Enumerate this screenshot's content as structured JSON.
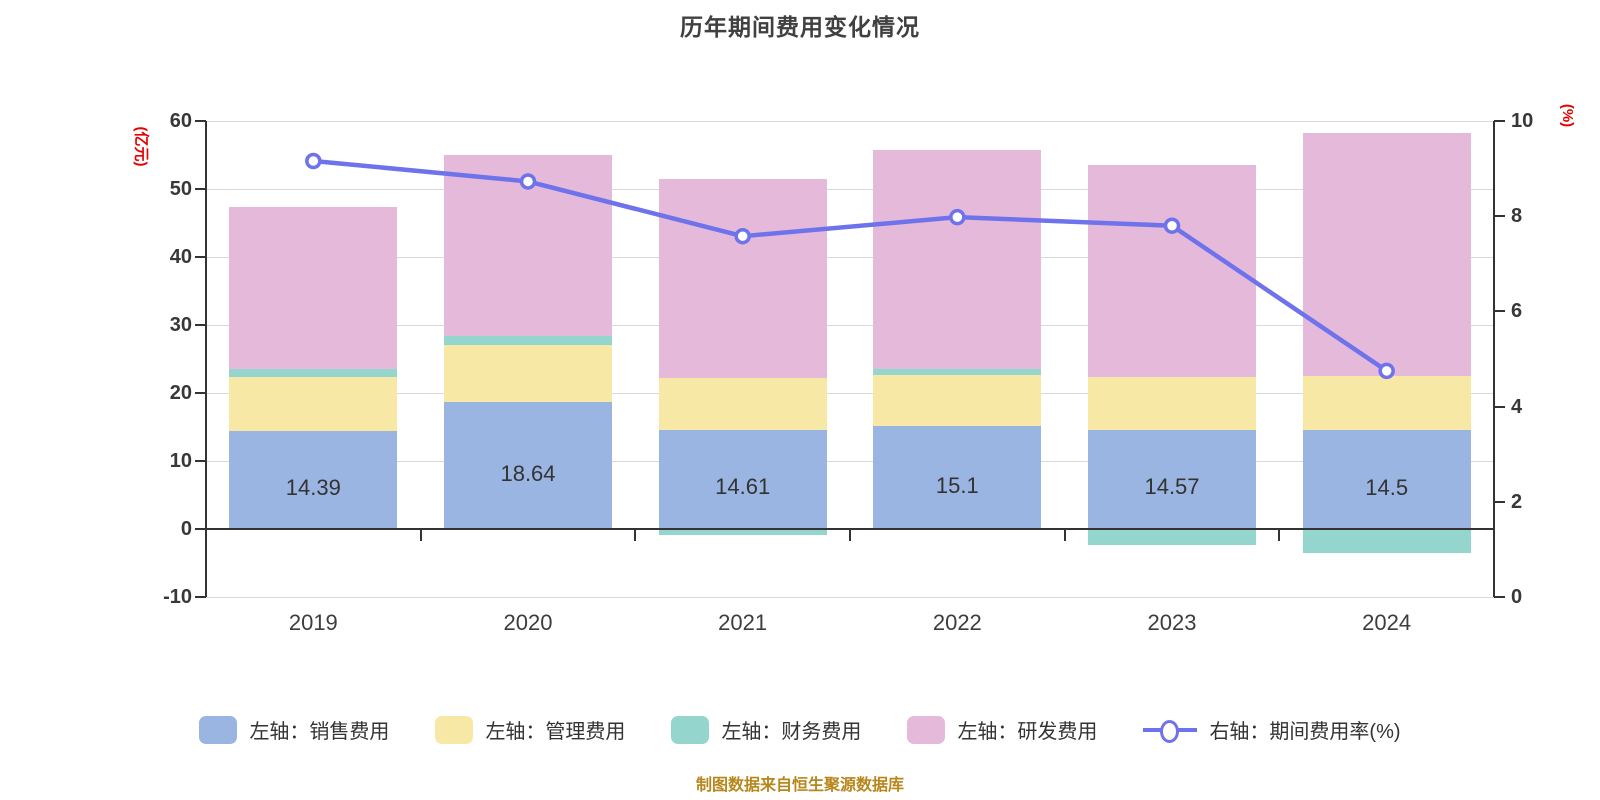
{
  "title": "历年期间费用变化情况",
  "footer": "制图数据来自恒生聚源数据库",
  "left_axis": {
    "name": "(亿元)",
    "min": -10,
    "max": 60,
    "ticks": [
      60,
      50,
      40,
      30,
      20,
      10,
      0,
      -10
    ]
  },
  "right_axis": {
    "name": "(%)",
    "min": 0,
    "max": 10,
    "ticks": [
      10,
      8,
      6,
      4,
      2,
      0
    ]
  },
  "colors": {
    "sales": "#9ab5e1",
    "management": "#f8e8a6",
    "finance": "#94d5cd",
    "rnd": "#e5b9da",
    "rate": "#6e73ec",
    "grid": "#d9d9d9",
    "axis": "#333333",
    "title": "#404040",
    "axis_name_red": "#e60000",
    "footer_gold": "#b8871c"
  },
  "legend": [
    {
      "label": "左轴：销售费用",
      "type": "bar",
      "color_key": "sales"
    },
    {
      "label": "左轴：管理费用",
      "type": "bar",
      "color_key": "management"
    },
    {
      "label": "左轴：财务费用",
      "type": "bar",
      "color_key": "finance"
    },
    {
      "label": "左轴：研发费用",
      "type": "bar",
      "color_key": "rnd"
    },
    {
      "label": "右轴：期间费用率(%)",
      "type": "line",
      "color_key": "rate"
    }
  ],
  "chart_data": {
    "type": "bar",
    "subtype": "stacked-bars-with-line-overlay",
    "categories": [
      "2019",
      "2020",
      "2021",
      "2022",
      "2023",
      "2024"
    ],
    "series": [
      {
        "name": "左轴：销售费用",
        "type": "bar",
        "axis": "left",
        "color_key": "sales",
        "values": [
          14.39,
          18.64,
          14.61,
          15.1,
          14.57,
          14.5
        ],
        "data_labels": [
          "14.39",
          "18.64",
          "14.61",
          "15.1",
          "14.57",
          "14.5"
        ]
      },
      {
        "name": "左轴：管理费用",
        "type": "bar",
        "axis": "left",
        "color_key": "management",
        "values": [
          7.9,
          8.4,
          7.6,
          7.5,
          7.8,
          8.0
        ]
      },
      {
        "name": "左轴：财务费用",
        "type": "bar",
        "axis": "left",
        "color_key": "finance",
        "values": [
          1.2,
          1.3,
          -0.9,
          0.9,
          -2.3,
          -3.6
        ]
      },
      {
        "name": "左轴：研发费用",
        "type": "bar",
        "axis": "left",
        "color_key": "rnd",
        "values": [
          23.8,
          26.7,
          29.3,
          32.3,
          31.1,
          35.7
        ]
      },
      {
        "name": "右轴：期间费用率(%)",
        "type": "line",
        "axis": "right",
        "color_key": "rate",
        "values": [
          9.16,
          8.73,
          7.58,
          7.98,
          7.8,
          4.75
        ]
      }
    ],
    "title": "历年期间费用变化情况",
    "xlabel": "",
    "ylabel_left": "(亿元)",
    "ylabel_right": "(%)",
    "ylim_left": [
      -10,
      60
    ],
    "ylim_right": [
      0,
      10
    ],
    "grid": true,
    "legend_position": "bottom"
  }
}
